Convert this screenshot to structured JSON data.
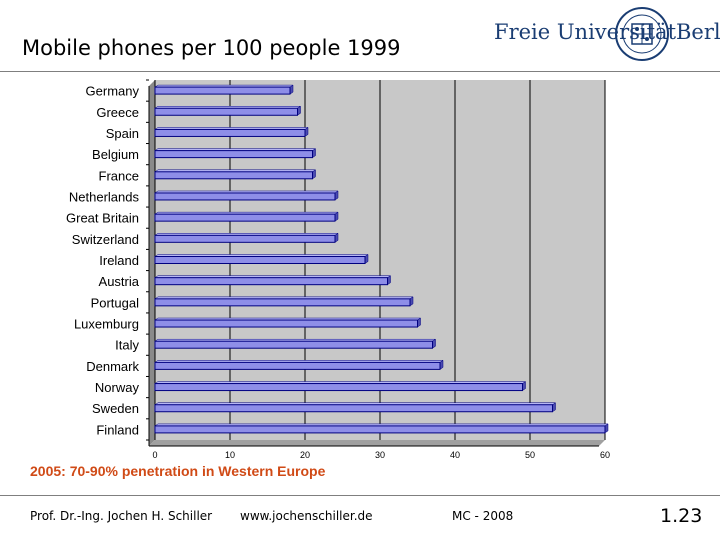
{
  "slide": {
    "title": "Mobile phones per 100 people 1999",
    "note": "2005: 70-90% penetration in Western Europe",
    "footer": {
      "author": "Prof. Dr.-Ing. Jochen H. Schiller",
      "website": "www.jochenschiller.de",
      "course": "MC - 2008"
    },
    "slide_number": "1.23"
  },
  "logo": {
    "left_text": "Freie Universität",
    "right_text": "Berlin",
    "color": "#1a3d73"
  },
  "chart_data": {
    "type": "bar",
    "orientation": "horizontal",
    "categories": [
      "Germany",
      "Greece",
      "Spain",
      "Belgium",
      "France",
      "Netherlands",
      "Great Britain",
      "Switzerland",
      "Ireland",
      "Austria",
      "Portugal",
      "Luxemburg",
      "Italy",
      "Denmark",
      "Norway",
      "Sweden",
      "Finland"
    ],
    "values": [
      18,
      19,
      20,
      21,
      21,
      24,
      24,
      24,
      28,
      31,
      34,
      35,
      37,
      38,
      49,
      53,
      60
    ],
    "xlim": [
      0,
      60
    ],
    "xticks": [
      0,
      10,
      20,
      30,
      40,
      50,
      60
    ],
    "title": "",
    "xlabel": "",
    "ylabel": "",
    "grid": "vertical",
    "legend": "none",
    "colors": {
      "bar": "#8e8ee8",
      "bar_edge": "#000080",
      "plot_bg": "#c8c8c8",
      "grid": "#000000"
    }
  }
}
